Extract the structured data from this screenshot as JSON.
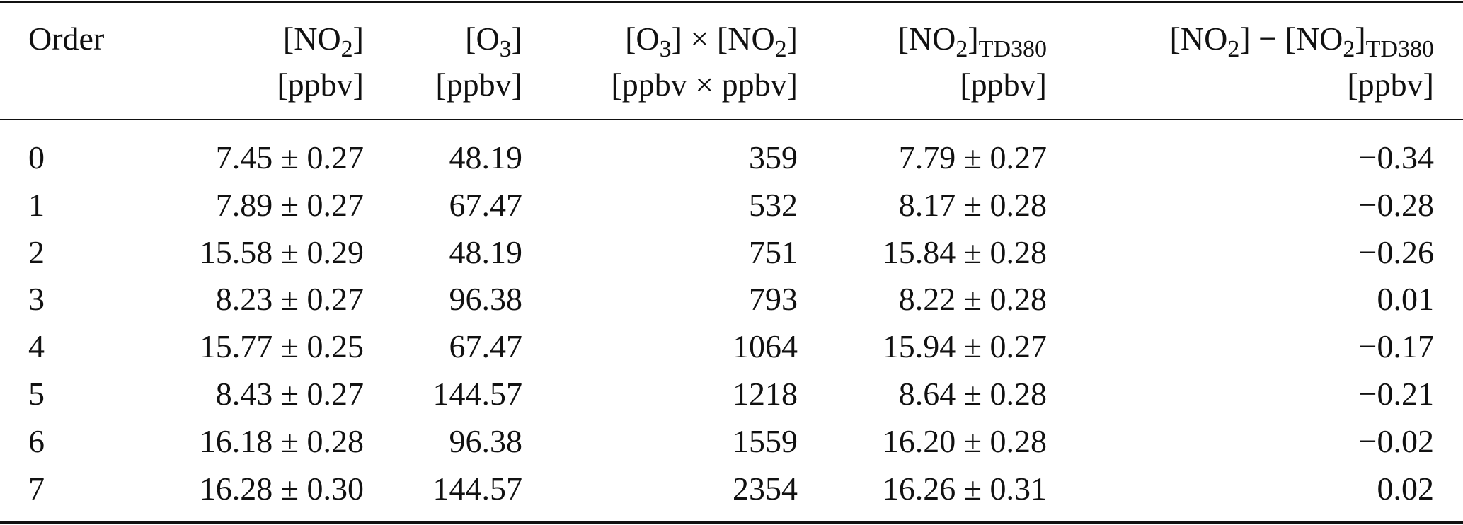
{
  "table": {
    "header": [
      [
        [
          "Order"
        ]
      ],
      [
        [
          "[NO",
          {
            "sub": "2"
          },
          "]"
        ],
        [
          "[ppbv]"
        ]
      ],
      [
        [
          "[O",
          {
            "sub": "3"
          },
          "]"
        ],
        [
          "[ppbv]"
        ]
      ],
      [
        [
          "[O",
          {
            "sub": "3"
          },
          "] × [NO",
          {
            "sub": "2"
          },
          "]"
        ],
        [
          "[ppbv × ppbv]"
        ]
      ],
      [
        [
          "[NO",
          {
            "sub": "2"
          },
          "]",
          {
            "sub": "TD380"
          }
        ],
        [
          "[ppbv]"
        ]
      ],
      [
        [
          "[NO",
          {
            "sub": "2"
          },
          "] − [NO",
          {
            "sub": "2"
          },
          "]",
          {
            "sub": "TD380"
          }
        ],
        [
          "[ppbv]"
        ]
      ]
    ],
    "rows": [
      [
        "0",
        "7.45 ± 0.27",
        "48.19",
        "359",
        "7.79 ± 0.27",
        "−0.34"
      ],
      [
        "1",
        "7.89 ± 0.27",
        "67.47",
        "532",
        "8.17 ± 0.28",
        "−0.28"
      ],
      [
        "2",
        "15.58 ± 0.29",
        "48.19",
        "751",
        "15.84 ± 0.28",
        "−0.26"
      ],
      [
        "3",
        "8.23 ± 0.27",
        "96.38",
        "793",
        "8.22 ± 0.28",
        "0.01"
      ],
      [
        "4",
        "15.77 ± 0.25",
        "67.47",
        "1064",
        "15.94 ± 0.27",
        "−0.17"
      ],
      [
        "5",
        "8.43 ± 0.27",
        "144.57",
        "1218",
        "8.64 ± 0.28",
        "−0.21"
      ],
      [
        "6",
        "16.18 ± 0.28",
        "96.38",
        "1559",
        "16.20 ± 0.28",
        "−0.02"
      ],
      [
        "7",
        "16.28 ± 0.30",
        "144.57",
        "2354",
        "16.26 ± 0.31",
        "0.02"
      ]
    ]
  }
}
